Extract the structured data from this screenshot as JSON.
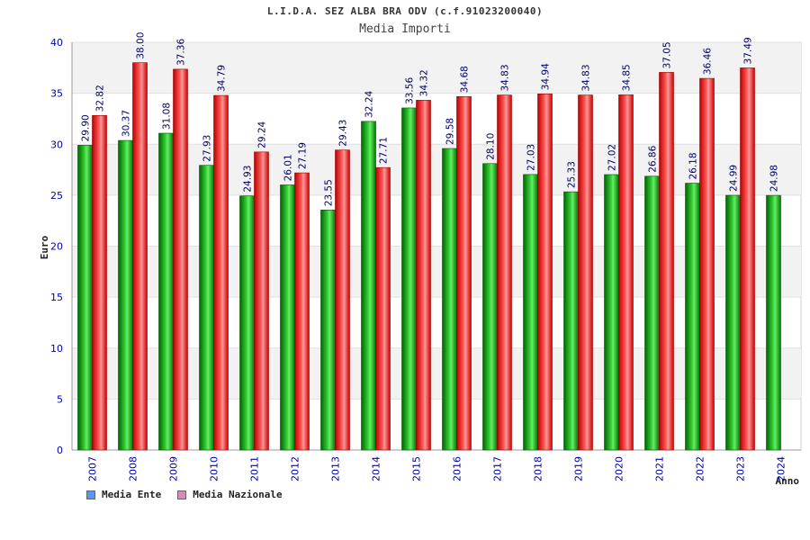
{
  "title": "L.I.D.A. SEZ ALBA BRA ODV (c.f.91023200040)",
  "subtitle": "Media Importi",
  "colors": {
    "ente": "#22aa22",
    "nazionale": "#ee3333",
    "legend_ente": "#5599ee",
    "legend_nazionale": "#dd88bb",
    "axis_text": "#0000aa",
    "band": "#f2f2f2"
  },
  "chart_data": {
    "type": "bar",
    "title": "Media Importi",
    "xlabel": "Anno",
    "ylabel": "Euro",
    "ylim": [
      0,
      40
    ],
    "yticks": [
      0,
      5,
      10,
      15,
      20,
      25,
      30,
      35,
      40
    ],
    "grid": true,
    "legend_position": "bottom-left",
    "categories": [
      "2007",
      "2008",
      "2009",
      "2010",
      "2011",
      "2012",
      "2013",
      "2014",
      "2015",
      "2016",
      "2017",
      "2018",
      "2019",
      "2020",
      "2021",
      "2022",
      "2023",
      "2024"
    ],
    "series": [
      {
        "name": "Media Ente",
        "values": [
          29.9,
          30.37,
          31.08,
          27.93,
          24.93,
          26.01,
          23.55,
          32.24,
          33.56,
          29.58,
          28.1,
          27.03,
          25.33,
          27.02,
          26.86,
          26.18,
          24.99,
          24.98
        ],
        "labels": [
          "29.90",
          "30.37",
          "31.08",
          "27.93",
          "24.93",
          "26.01",
          "23.55",
          "32.24",
          "33.56",
          "29.58",
          "28.10",
          "27.03",
          "25.33",
          "27.02",
          "26.86",
          "26.18",
          "24.99",
          "24.98"
        ]
      },
      {
        "name": "Media Nazionale",
        "values": [
          32.82,
          38.0,
          37.36,
          34.79,
          29.24,
          27.19,
          29.43,
          27.71,
          34.32,
          34.68,
          34.83,
          34.94,
          34.83,
          34.85,
          37.05,
          36.46,
          37.49,
          null
        ],
        "labels": [
          "32.82",
          "38.00",
          "37.36",
          "34.79",
          "29.24",
          "27.19",
          "29.43",
          "27.71",
          "34.32",
          "34.68",
          "34.83",
          "34.94",
          "34.83",
          "34.85",
          "37.05",
          "36.46",
          "37.49",
          ""
        ]
      }
    ]
  }
}
